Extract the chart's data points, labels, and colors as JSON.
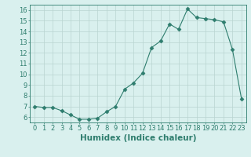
{
  "x": [
    0,
    1,
    2,
    3,
    4,
    5,
    6,
    7,
    8,
    9,
    10,
    11,
    12,
    13,
    14,
    15,
    16,
    17,
    18,
    19,
    20,
    21,
    22,
    23
  ],
  "y": [
    7.0,
    6.9,
    6.9,
    6.6,
    6.2,
    5.8,
    5.8,
    5.9,
    6.5,
    7.0,
    8.6,
    9.2,
    10.1,
    12.5,
    13.1,
    14.7,
    14.2,
    16.1,
    15.3,
    15.2,
    15.1,
    14.9,
    12.3,
    7.7
  ],
  "line_color": "#2e7d6e",
  "marker": "D",
  "marker_size": 2.5,
  "bg_color": "#d9f0ee",
  "grid_color": "#b8d4d0",
  "xlabel": "Humidex (Indice chaleur)",
  "xlim": [
    -0.5,
    23.5
  ],
  "ylim": [
    5.5,
    16.5
  ],
  "xticks": [
    0,
    1,
    2,
    3,
    4,
    5,
    6,
    7,
    8,
    9,
    10,
    11,
    12,
    13,
    14,
    15,
    16,
    17,
    18,
    19,
    20,
    21,
    22,
    23
  ],
  "yticks": [
    6,
    7,
    8,
    9,
    10,
    11,
    12,
    13,
    14,
    15,
    16
  ],
  "tick_color": "#2e7d6e",
  "label_fontsize": 6,
  "axis_label_fontsize": 7.5
}
